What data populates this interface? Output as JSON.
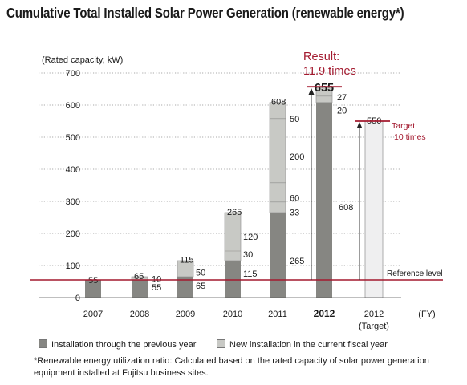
{
  "title": "Cumulative Total Installed Solar Power Generation (renewable energy*)",
  "colors": {
    "previous": "#868682",
    "new": "#c8c9c5",
    "target": "#efeff0",
    "accent": "#a3192e"
  },
  "chart_data": {
    "type": "bar",
    "stacked": true,
    "ylabel": "(Rated capacity, kW)",
    "xlabel": "(FY)",
    "ylim": [
      0,
      700
    ],
    "yticks": [
      0,
      100,
      200,
      300,
      400,
      500,
      600,
      700
    ],
    "grid": "dotted horizontal",
    "categories": [
      "2007",
      "2008",
      "2009",
      "2010",
      "2011",
      "2012",
      "2012"
    ],
    "category_sublabels": [
      "",
      "",
      "",
      "",
      "",
      "",
      "(Target)"
    ],
    "highlight_category": 4,
    "totals": [
      "55",
      "65",
      "115",
      "265",
      "608",
      "655",
      "550"
    ],
    "series": [
      {
        "name": "Installation through the previous year",
        "values": [
          55,
          55,
          65,
          115,
          265,
          608,
          null
        ],
        "labels": [
          "",
          "55",
          "65",
          "115",
          "265",
          "608",
          ""
        ]
      },
      {
        "name": "New installation in the current fiscal year",
        "values": [
          null,
          10,
          50,
          150,
          343,
          47,
          null
        ],
        "labels": [
          "",
          "10",
          "50",
          "",
          "",
          "",
          ""
        ]
      },
      {
        "name": "Target",
        "values": [
          null,
          null,
          null,
          null,
          null,
          null,
          550
        ],
        "labels": [
          "",
          "",
          "",
          "",
          "",
          "",
          ""
        ]
      }
    ],
    "segment_splits": [
      {
        "category": 3,
        "values": [
          30,
          120
        ]
      },
      {
        "category": 4,
        "values": [
          33,
          60,
          200,
          50
        ]
      },
      {
        "category": 5,
        "values": [
          20,
          27
        ]
      }
    ],
    "reference_line": {
      "value": 55,
      "label": "Reference level"
    },
    "annotations": {
      "result_line1": "Result:",
      "result_line2": "11.9 times",
      "target_line1": "Target:",
      "target_line2": "10 times"
    }
  },
  "legend": {
    "previous": "Installation through the previous year",
    "new": "New installation in the current fiscal year"
  },
  "footnote": "*Renewable energy utilization ratio: Calculated based on the rated capacity of solar power generation equipment installed at Fujitsu business sites."
}
